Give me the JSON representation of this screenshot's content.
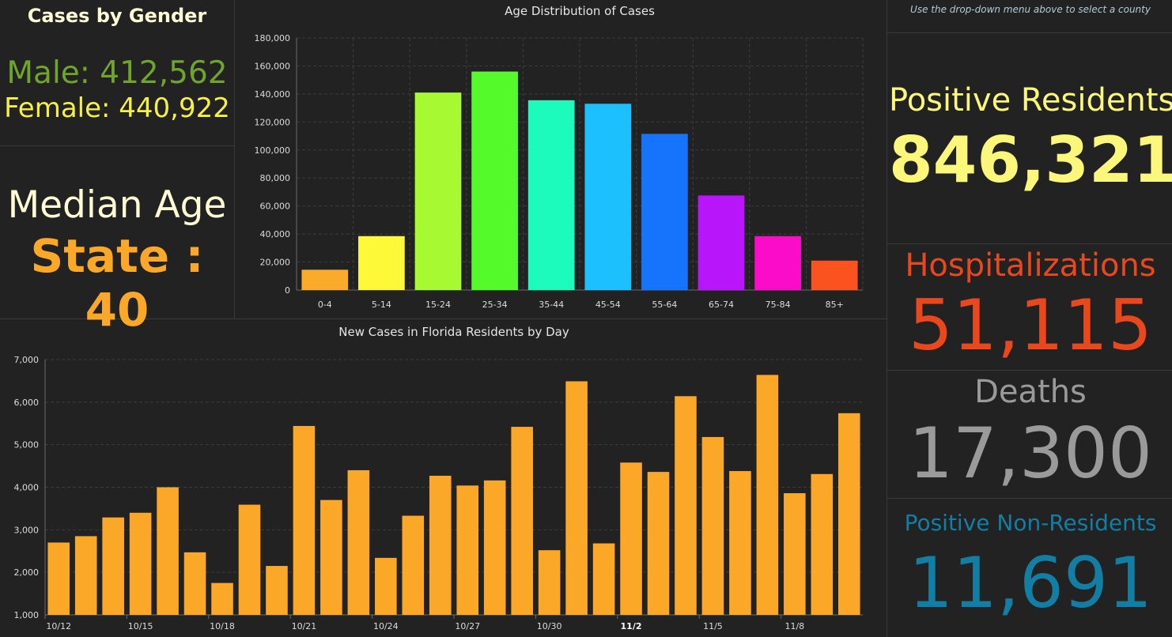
{
  "gender": {
    "title": "Cases by Gender",
    "male_text": "Male: 412,562",
    "female_text": "Female: 440,922"
  },
  "median": {
    "title": "Median Age",
    "state_text": "State : 40"
  },
  "note": "Use the drop-down menu above to select a county",
  "stats": {
    "positive_residents": {
      "label": "Positive Residents",
      "value": "846,321",
      "color": "#fbf77a"
    },
    "hospitalizations": {
      "label": "Hospitalizations",
      "value": "51,115",
      "color": "#e8481c"
    },
    "deaths": {
      "label": "Deaths",
      "value": "17,300",
      "color": "#9a9a9a"
    },
    "non_residents": {
      "label": "Positive Non-Residents",
      "value": "11,691",
      "color": "#137ea3"
    }
  },
  "chart_data": [
    {
      "type": "bar",
      "title": "Age Distribution of Cases",
      "categories": [
        "0-4",
        "5-14",
        "15-24",
        "25-34",
        "35-44",
        "45-54",
        "55-64",
        "65-74",
        "75-84",
        "85+"
      ],
      "values": [
        14500,
        38500,
        141000,
        156000,
        135500,
        133000,
        111500,
        67500,
        38500,
        21000
      ],
      "colors": [
        "#fbab2a",
        "#fdf838",
        "#a7f932",
        "#55fa2b",
        "#1cfbbc",
        "#1cc0fc",
        "#1673fb",
        "#b915fb",
        "#fb0cc8",
        "#fb5320"
      ],
      "ylim": [
        0,
        180000
      ],
      "yticks": [
        "0",
        "20,000",
        "40,000",
        "60,000",
        "80,000",
        "100,000",
        "120,000",
        "140,000",
        "160,000",
        "180,000"
      ],
      "grid": true
    },
    {
      "type": "bar",
      "title": "New Cases in Florida Residents by Day",
      "x": [
        "10/12",
        "10/13",
        "10/14",
        "10/15",
        "10/16",
        "10/17",
        "10/18",
        "10/19",
        "10/20",
        "10/21",
        "10/22",
        "10/23",
        "10/24",
        "10/25",
        "10/26",
        "10/27",
        "10/28",
        "10/29",
        "10/30",
        "10/31",
        "11/1",
        "11/2",
        "11/3",
        "11/4",
        "11/5",
        "11/6",
        "11/7",
        "11/8",
        "11/9",
        "11/10"
      ],
      "values": [
        2700,
        2850,
        3290,
        3400,
        4000,
        2470,
        1750,
        3590,
        2150,
        5440,
        3700,
        4400,
        2340,
        3330,
        4270,
        4040,
        4160,
        5420,
        2520,
        6490,
        2680,
        4580,
        4360,
        6140,
        5180,
        4380,
        6640,
        3860,
        4310,
        5740
      ],
      "xtick_labels": [
        "10/12",
        "10/15",
        "10/18",
        "10/21",
        "10/24",
        "10/27",
        "10/30",
        "11/2",
        "11/5",
        "11/8"
      ],
      "bold_label": "11/2",
      "color": "#fba828",
      "ylim": [
        1000,
        7000
      ],
      "yticks": [
        "1,000",
        "2,000",
        "3,000",
        "4,000",
        "5,000",
        "6,000",
        "7,000"
      ],
      "grid": true
    }
  ]
}
